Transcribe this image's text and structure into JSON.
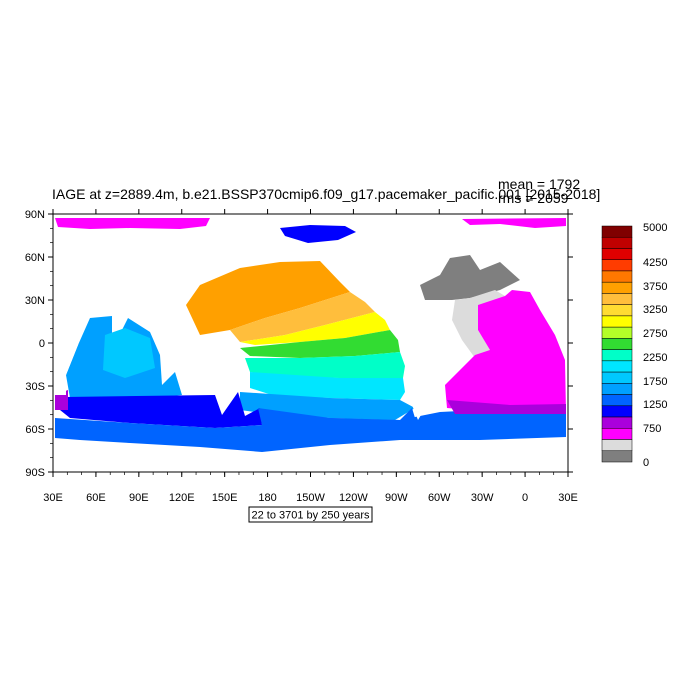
{
  "map": {
    "title": "IAGE at z=2889.4m, b.e21.BSSP370cmip6.f09_g17.pacemaker_pacific.001 [2015-2018]",
    "mean_label": "mean = 1792",
    "rms_label": "rms = 2059",
    "range_label": "22 to 3701 by 250 years",
    "lat_labels": [
      "90N",
      "60N",
      "30N",
      "0",
      "30S",
      "60S",
      "90S"
    ],
    "lon_labels": [
      "30E",
      "60E",
      "90E",
      "120E",
      "150E",
      "180",
      "150W",
      "120W",
      "90W",
      "60W",
      "30W",
      "0",
      "30E"
    ]
  },
  "colorbar": {
    "labels": [
      "5000",
      "4250",
      "3750",
      "3250",
      "2750",
      "2250",
      "1750",
      "1250",
      "750",
      "0"
    ],
    "colors": [
      "#800000",
      "#c00000",
      "#e00000",
      "#ff3c00",
      "#ff7800",
      "#ffa000",
      "#ffbe3c",
      "#ffdc32",
      "#ffff00",
      "#b4ff28",
      "#32dc32",
      "#00ffc8",
      "#00e6ff",
      "#00c8ff",
      "#00a0ff",
      "#0064ff",
      "#0000ff",
      "#aa00dc",
      "#ff00ff",
      "#dcdcdc",
      "#7f7f7f"
    ]
  }
}
